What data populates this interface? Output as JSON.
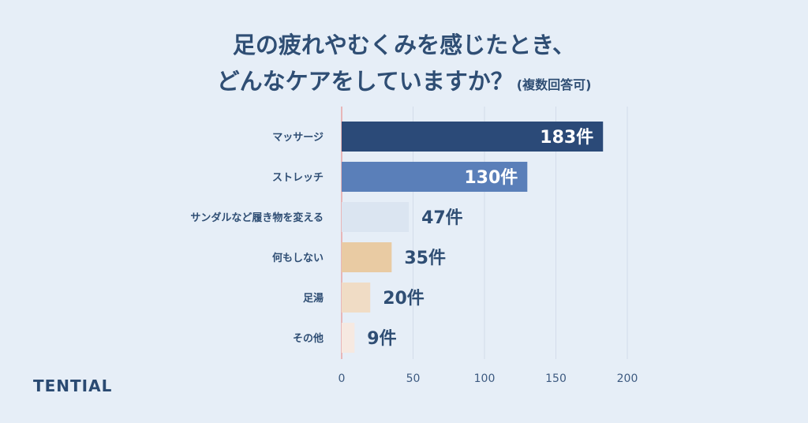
{
  "title": {
    "line1": "足の疲れやむくみを感じたとき、",
    "line2": "どんなケアをしていますか？",
    "note": "(複数回答可)"
  },
  "logo": "TENTIAL",
  "chart_data": {
    "type": "bar",
    "orientation": "horizontal",
    "categories": [
      "マッサージ",
      "ストレッチ",
      "サンダルなど履き物を変える",
      "何もしない",
      "足湯",
      "その他"
    ],
    "values": [
      183,
      130,
      47,
      35,
      20,
      9
    ],
    "data_labels": [
      "183件",
      "130件",
      "47件",
      "35件",
      "20件",
      "9件"
    ],
    "bar_colors": [
      "#2b4a78",
      "#5a7fb9",
      "#dbe5f1",
      "#e9cba3",
      "#f0dcc5",
      "#f6e9e1"
    ],
    "xlim": [
      0,
      200
    ],
    "xticks": [
      "0",
      "50",
      "100",
      "150",
      "200"
    ],
    "grid": true,
    "xlabel": "",
    "ylabel": ""
  }
}
